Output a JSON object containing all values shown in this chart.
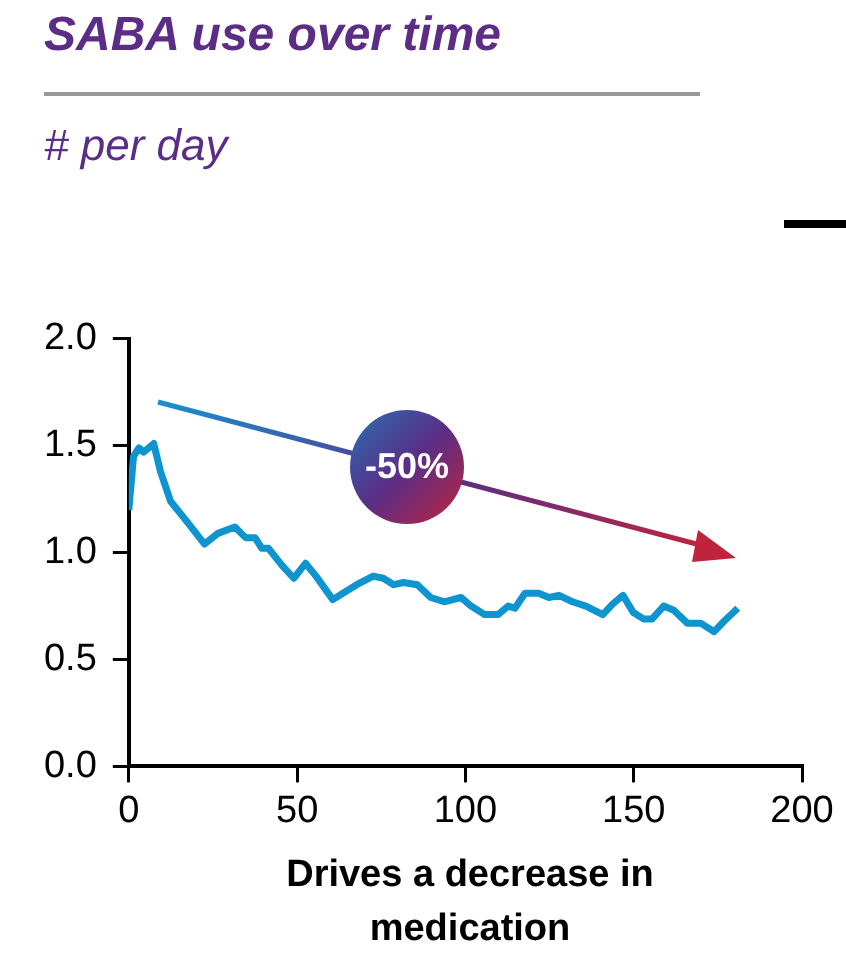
{
  "chart_data": {
    "type": "line",
    "title": "SABA use over time",
    "subtitle": "# per day",
    "xlabel": "Drives a decrease in medication",
    "x": [
      0,
      1.4,
      3,
      4.4,
      7.4,
      9.4,
      12.4,
      17.5,
      22.5,
      26.5,
      31.5,
      34.7,
      37.5,
      39.5,
      41.5,
      45.5,
      49,
      52.5,
      55.6,
      60.6,
      63.6,
      67.7,
      72.6,
      75.6,
      78.7,
      81.6,
      85.7,
      89.7,
      93.7,
      98.7,
      101.7,
      105.7,
      109.7,
      112.7,
      114.7,
      117.7,
      121.8,
      124.8,
      127.8,
      131.8,
      135.8,
      140.8,
      143.8,
      146.8,
      149.9,
      152.9,
      155.5,
      158.9,
      161.9,
      165.9,
      169.9,
      173.9,
      176.9,
      180.9
    ],
    "values": [
      1.2,
      1.45,
      1.49,
      1.47,
      1.51,
      1.38,
      1.24,
      1.14,
      1.04,
      1.09,
      1.12,
      1.07,
      1.07,
      1.02,
      1.02,
      0.94,
      0.88,
      0.95,
      0.89,
      0.78,
      0.81,
      0.85,
      0.89,
      0.88,
      0.85,
      0.86,
      0.85,
      0.79,
      0.77,
      0.79,
      0.75,
      0.71,
      0.71,
      0.75,
      0.74,
      0.81,
      0.81,
      0.79,
      0.8,
      0.77,
      0.75,
      0.71,
      0.76,
      0.8,
      0.72,
      0.69,
      0.69,
      0.75,
      0.73,
      0.67,
      0.67,
      0.63,
      0.68,
      0.74
    ],
    "color": "#0e94cf",
    "xlim": [
      0,
      200
    ],
    "xticks": [
      0,
      50,
      100,
      150,
      200
    ],
    "ylim": [
      0,
      2
    ],
    "yticks": [
      {
        "value": 0,
        "label": "0.0"
      },
      {
        "value": 0.5,
        "label": "0.5"
      },
      {
        "value": 1,
        "label": "1.0"
      },
      {
        "value": 1.5,
        "label": "1.5"
      },
      {
        "value": 2,
        "label": "2.0"
      }
    ],
    "grid": false,
    "legend": false,
    "marker": "none",
    "line_style": "solid",
    "annotations": [
      "-50%"
    ]
  }
}
